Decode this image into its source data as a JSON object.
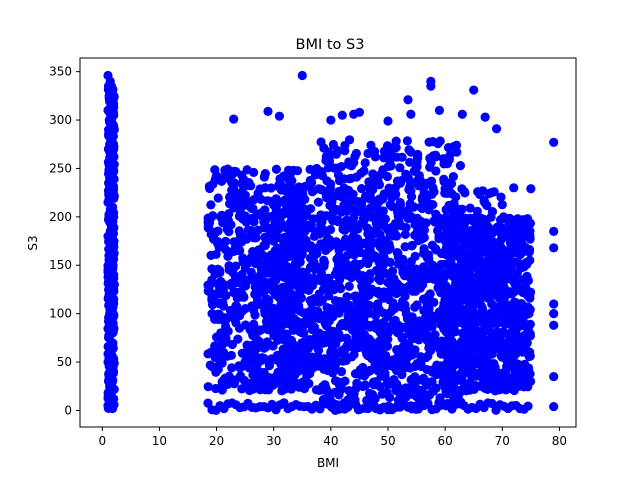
{
  "chart_data": {
    "type": "scatter",
    "title": "BMI to S3",
    "xlabel": "BMI",
    "ylabel": "S3",
    "xlim": [
      -3.9,
      82.9
    ],
    "ylim": [
      -17.1,
      364.1
    ],
    "xticks": [
      0,
      10,
      20,
      30,
      40,
      50,
      60,
      70,
      80
    ],
    "yticks": [
      0,
      50,
      100,
      150,
      200,
      250,
      300,
      350
    ],
    "grid": false,
    "legend": "none",
    "marker_color": "#0000ff",
    "series": [
      {
        "points_note_excluded": true,
        "x": [
          1.0,
          1.0,
          1.1,
          1.2,
          1.3,
          1.5,
          1.6,
          1.7,
          1.8,
          1.9,
          2.0,
          2.1,
          1.0,
          1.2,
          1.4,
          1.6,
          1.8,
          2.0,
          1.1,
          1.3,
          1.5,
          1.7,
          1.9,
          1.0,
          1.2,
          1.4,
          1.6,
          1.8,
          2.0,
          1.1,
          1.3,
          1.5,
          1.7,
          1.9,
          1.0,
          1.2,
          1.4,
          1.6,
          1.8,
          2.0,
          1.1,
          1.3,
          1.5,
          1.7,
          1.9,
          1.0,
          1.2,
          1.4,
          1.6,
          1.8,
          2.0,
          1.1,
          1.5,
          1.9,
          1.2,
          1.7,
          1.0,
          1.8,
          1.3,
          2.0,
          1.6,
          1.4
        ],
        "y": [
          346,
          5,
          3,
          10,
          25,
          40,
          55,
          70,
          85,
          100,
          115,
          130,
          145,
          160,
          175,
          190,
          205,
          220,
          235,
          250,
          265,
          280,
          295,
          310,
          325,
          340,
          335,
          320,
          305,
          290,
          275,
          260,
          245,
          230,
          215,
          200,
          185,
          170,
          155,
          140,
          125,
          110,
          95,
          80,
          65,
          50,
          35,
          20,
          8,
          2,
          12,
          30,
          60,
          90,
          120,
          150,
          180,
          210,
          240,
          270,
          300,
          330
        ]
      }
    ],
    "clusters": [
      {
        "x": [
          18.5,
          38
        ],
        "y": [
          20,
          250
        ]
      },
      {
        "x": [
          30,
          70
        ],
        "y": [
          20,
          230
        ]
      },
      {
        "x": [
          38,
          63
        ],
        "y": [
          0,
          280
        ]
      },
      {
        "x": [
          60,
          75
        ],
        "y": [
          20,
          200
        ]
      }
    ],
    "floor_row": {
      "x": [
        18.5,
        75
      ],
      "y": [
        0,
        8
      ]
    },
    "outliers": {
      "x": [
        35,
        42,
        57.5,
        57.5,
        65,
        53.5,
        44,
        23,
        29,
        31,
        40,
        45,
        50,
        54,
        59,
        63,
        67,
        69,
        72,
        75,
        79,
        79,
        79,
        79,
        79,
        79,
        79,
        79
      ],
      "y": [
        346,
        305,
        340,
        335,
        331,
        321,
        306,
        301,
        309,
        304,
        300,
        308,
        299,
        306,
        310,
        306,
        303,
        291,
        230,
        229,
        277,
        185,
        168,
        110,
        100,
        88,
        35,
        4
      ]
    }
  }
}
